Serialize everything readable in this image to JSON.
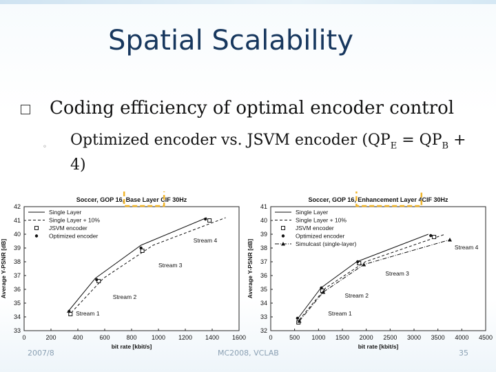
{
  "slide": {
    "title": "Spatial Scalability",
    "bullet1": "Coding efficiency of optimal encoder control",
    "bullet2_pre": "Optimized encoder vs. JSVM encoder (QP",
    "bullet2_sub1": "E",
    "bullet2_mid": " = QP",
    "bullet2_sub2": "B",
    "bullet2_post": " + 4)",
    "footer_left": "2007/8",
    "footer_center": "MC2008, VCLAB",
    "footer_right": "35"
  },
  "colors": {
    "title": "#17375e",
    "highlight": "#f0b429"
  },
  "chart_data": [
    {
      "type": "line",
      "title": "Soccer, GOP 16, Base Layer CIF 30Hz",
      "title_highlight": "Base Layer",
      "xlabel": "bit rate [kbit/s]",
      "ylabel": "Average Y-PSNR [dB]",
      "xlim": [
        0,
        1600
      ],
      "ylim": [
        33,
        42
      ],
      "xticks": [
        0,
        200,
        400,
        600,
        800,
        1000,
        1200,
        1400,
        1600
      ],
      "yticks": [
        33,
        34,
        35,
        36,
        37,
        38,
        39,
        40,
        41,
        42
      ],
      "legend_position": "top-left",
      "series": [
        {
          "name": "Single Layer",
          "style": "solid",
          "marker": "none",
          "x": [
            320,
            530,
            870,
            1360
          ],
          "y": [
            34.3,
            36.8,
            39.2,
            41.2
          ]
        },
        {
          "name": "Single Layer + 10%",
          "style": "dash",
          "marker": "none",
          "x": [
            350,
            590,
            960,
            1500
          ],
          "y": [
            34.3,
            36.8,
            39.2,
            41.2
          ]
        },
        {
          "name": "JSVM encoder",
          "style": "none",
          "marker": "square",
          "x": [
            345,
            555,
            880,
            1380
          ],
          "y": [
            34.2,
            36.6,
            38.8,
            41.0
          ]
        },
        {
          "name": "Optimized encoder",
          "style": "none",
          "marker": "dot",
          "x": [
            335,
            540,
            870,
            1350
          ],
          "y": [
            34.4,
            36.7,
            39.0,
            41.1
          ]
        }
      ],
      "annotations": [
        {
          "text": "Stream 1",
          "x": 385,
          "y": 34.1
        },
        {
          "text": "Stream 2",
          "x": 660,
          "y": 35.3
        },
        {
          "text": "Stream 3",
          "x": 1000,
          "y": 37.6
        },
        {
          "text": "Stream 4",
          "x": 1260,
          "y": 39.4
        }
      ]
    },
    {
      "type": "line",
      "title": "Soccer, GOP 16, Enhancement Layer 4CIF 30Hz",
      "title_highlight": "Enhancement Layer",
      "xlabel": "bit rate [kbit/s]",
      "ylabel": "Average Y-PSNR [dB]",
      "xlim": [
        0,
        4500
      ],
      "ylim": [
        32,
        41
      ],
      "xticks": [
        0,
        500,
        1000,
        1500,
        2000,
        2500,
        3000,
        3500,
        4000,
        4500
      ],
      "yticks": [
        32,
        33,
        34,
        35,
        36,
        37,
        38,
        39,
        40,
        41
      ],
      "legend_position": "top-left",
      "series": [
        {
          "name": "Single Layer",
          "style": "solid",
          "marker": "none",
          "x": [
            550,
            1050,
            1800,
            3300
          ],
          "y": [
            32.8,
            35.1,
            37.0,
            39.0
          ]
        },
        {
          "name": "Single Layer + 10%",
          "style": "dash",
          "marker": "none",
          "x": [
            600,
            1150,
            1980,
            3650
          ],
          "y": [
            32.8,
            35.1,
            37.0,
            39.0
          ]
        },
        {
          "name": "JSVM encoder",
          "style": "none",
          "marker": "square",
          "x": [
            580,
            1080,
            1850,
            3420
          ],
          "y": [
            32.6,
            34.9,
            36.9,
            38.8
          ]
        },
        {
          "name": "Optimized encoder",
          "style": "none",
          "marker": "dot",
          "x": [
            560,
            1060,
            1820,
            3350
          ],
          "y": [
            32.9,
            35.1,
            37.0,
            38.9
          ]
        },
        {
          "name": "Simulcast (single-layer)",
          "style": "dashdot",
          "marker": "triangle",
          "x": [
            600,
            1100,
            1950,
            3750
          ],
          "y": [
            32.7,
            34.8,
            36.8,
            38.6
          ]
        }
      ],
      "annotations": [
        {
          "text": "Stream 1",
          "x": 1200,
          "y": 33.1
        },
        {
          "text": "Stream 2",
          "x": 1550,
          "y": 34.4
        },
        {
          "text": "Stream 3",
          "x": 2400,
          "y": 36.0
        },
        {
          "text": "Stream 4",
          "x": 3850,
          "y": 37.9
        }
      ]
    }
  ]
}
